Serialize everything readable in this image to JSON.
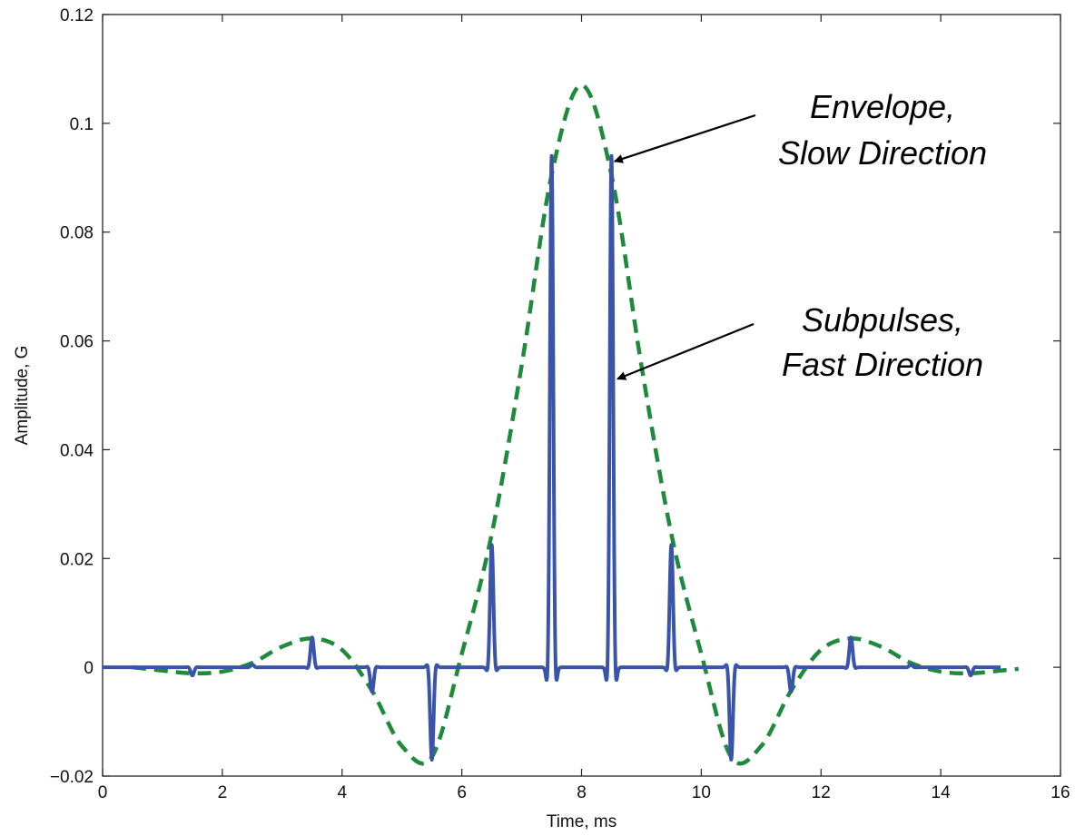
{
  "chart_data": {
    "type": "line",
    "title": "",
    "xlabel": "Time, ms",
    "ylabel": "Amplitude, G",
    "xlim": [
      0,
      16
    ],
    "ylim": [
      -0.02,
      0.12
    ],
    "xticks": [
      0,
      2,
      4,
      6,
      8,
      10,
      12,
      14,
      16
    ],
    "xtick_labels": [
      "0",
      "2",
      "4",
      "6",
      "8",
      "10",
      "12",
      "14",
      "16"
    ],
    "yticks": [
      -0.02,
      0,
      0.02,
      0.04,
      0.06,
      0.08,
      0.1,
      0.12
    ],
    "ytick_labels": [
      "−0.02",
      "0",
      "0.02",
      "0.04",
      "0.06",
      "0.08",
      "0.1",
      "0.12"
    ],
    "grid": false,
    "series": [
      {
        "color": "#1f8a3c",
        "style": "dashed",
        "x": [
          0.5,
          1.0,
          1.5,
          2.0,
          2.5,
          3.0,
          3.5,
          4.0,
          4.5,
          5.0,
          5.5,
          6.0,
          6.5,
          7.0,
          7.5,
          8.0,
          8.5,
          9.0,
          9.5,
          10.0,
          10.5,
          11.0,
          11.5,
          12.0,
          12.5,
          13.0,
          13.5,
          14.0,
          14.5,
          15.0,
          15.3
        ],
        "y": [
          0.0,
          -0.0006,
          -0.0011,
          -0.0008,
          0.0008,
          0.0038,
          0.0053,
          0.0032,
          -0.0043,
          -0.0145,
          -0.0165,
          0.0025,
          0.0245,
          0.0555,
          0.0905,
          0.107,
          0.0905,
          0.0555,
          0.0245,
          0.0025,
          -0.0165,
          -0.0145,
          -0.0043,
          0.0032,
          0.0053,
          0.0038,
          0.0008,
          -0.0008,
          -0.0011,
          -0.0006,
          -0.0003
        ]
      },
      {
        "color": "#3a55a8",
        "style": "solid",
        "pulses": [
          {
            "t": 1.5,
            "a": -0.0015
          },
          {
            "t": 2.5,
            "a": 0.0005
          },
          {
            "t": 3.5,
            "a": 0.0055
          },
          {
            "t": 4.5,
            "a": -0.0045
          },
          {
            "t": 5.5,
            "a": -0.017
          },
          {
            "t": 6.5,
            "a": 0.0225
          },
          {
            "t": 7.5,
            "a": 0.094
          },
          {
            "t": 8.5,
            "a": 0.094
          },
          {
            "t": 9.5,
            "a": 0.0225
          },
          {
            "t": 10.5,
            "a": -0.017
          },
          {
            "t": 11.5,
            "a": -0.0045
          },
          {
            "t": 12.5,
            "a": 0.0055
          },
          {
            "t": 13.5,
            "a": 0.0005
          },
          {
            "t": 14.5,
            "a": -0.0015
          }
        ],
        "x_range": [
          0,
          15
        ]
      }
    ],
    "annotations": [
      {
        "lines": [
          "Envelope,",
          "Slow Direction"
        ],
        "points_to": {
          "x": 8.55,
          "y": 0.093
        }
      },
      {
        "lines": [
          "Subpulses,",
          "Fast Direction"
        ],
        "points_to": {
          "x": 8.6,
          "y": 0.053
        }
      }
    ]
  }
}
